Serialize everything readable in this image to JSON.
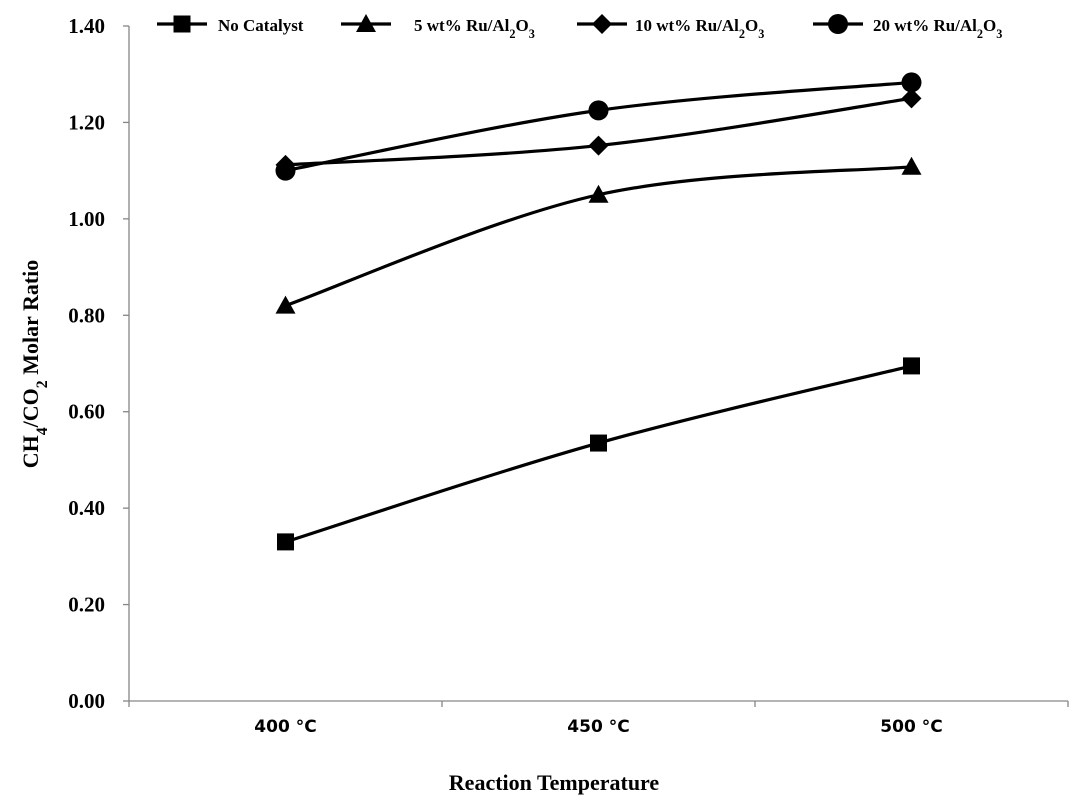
{
  "chart_data": {
    "type": "line",
    "categories": [
      "400 °C",
      "450 °C",
      "500 °C"
    ],
    "series": [
      {
        "name": "No Catalyst",
        "marker": "square",
        "values": [
          0.33,
          0.535,
          0.695
        ]
      },
      {
        "name": "5 wt% Ru/Al2O3",
        "marker": "triangle",
        "values": [
          0.82,
          1.05,
          1.108
        ]
      },
      {
        "name": "10 wt% Ru/Al2O3",
        "marker": "diamond",
        "values": [
          1.112,
          1.152,
          1.25
        ]
      },
      {
        "name": "20 wt% Ru/Al2O3",
        "marker": "circle",
        "values": [
          1.1,
          1.225,
          1.283
        ]
      }
    ],
    "xlabel": "Reaction Temperature",
    "ylabel": "CH4/CO2 Molar Ratio",
    "ylim": [
      0,
      1.4
    ],
    "yticks": [
      "0.00",
      "0.20",
      "0.40",
      "0.60",
      "0.80",
      "1.00",
      "1.20",
      "1.40"
    ],
    "grid": false,
    "legend_position": "top",
    "line_color": "#000000"
  }
}
